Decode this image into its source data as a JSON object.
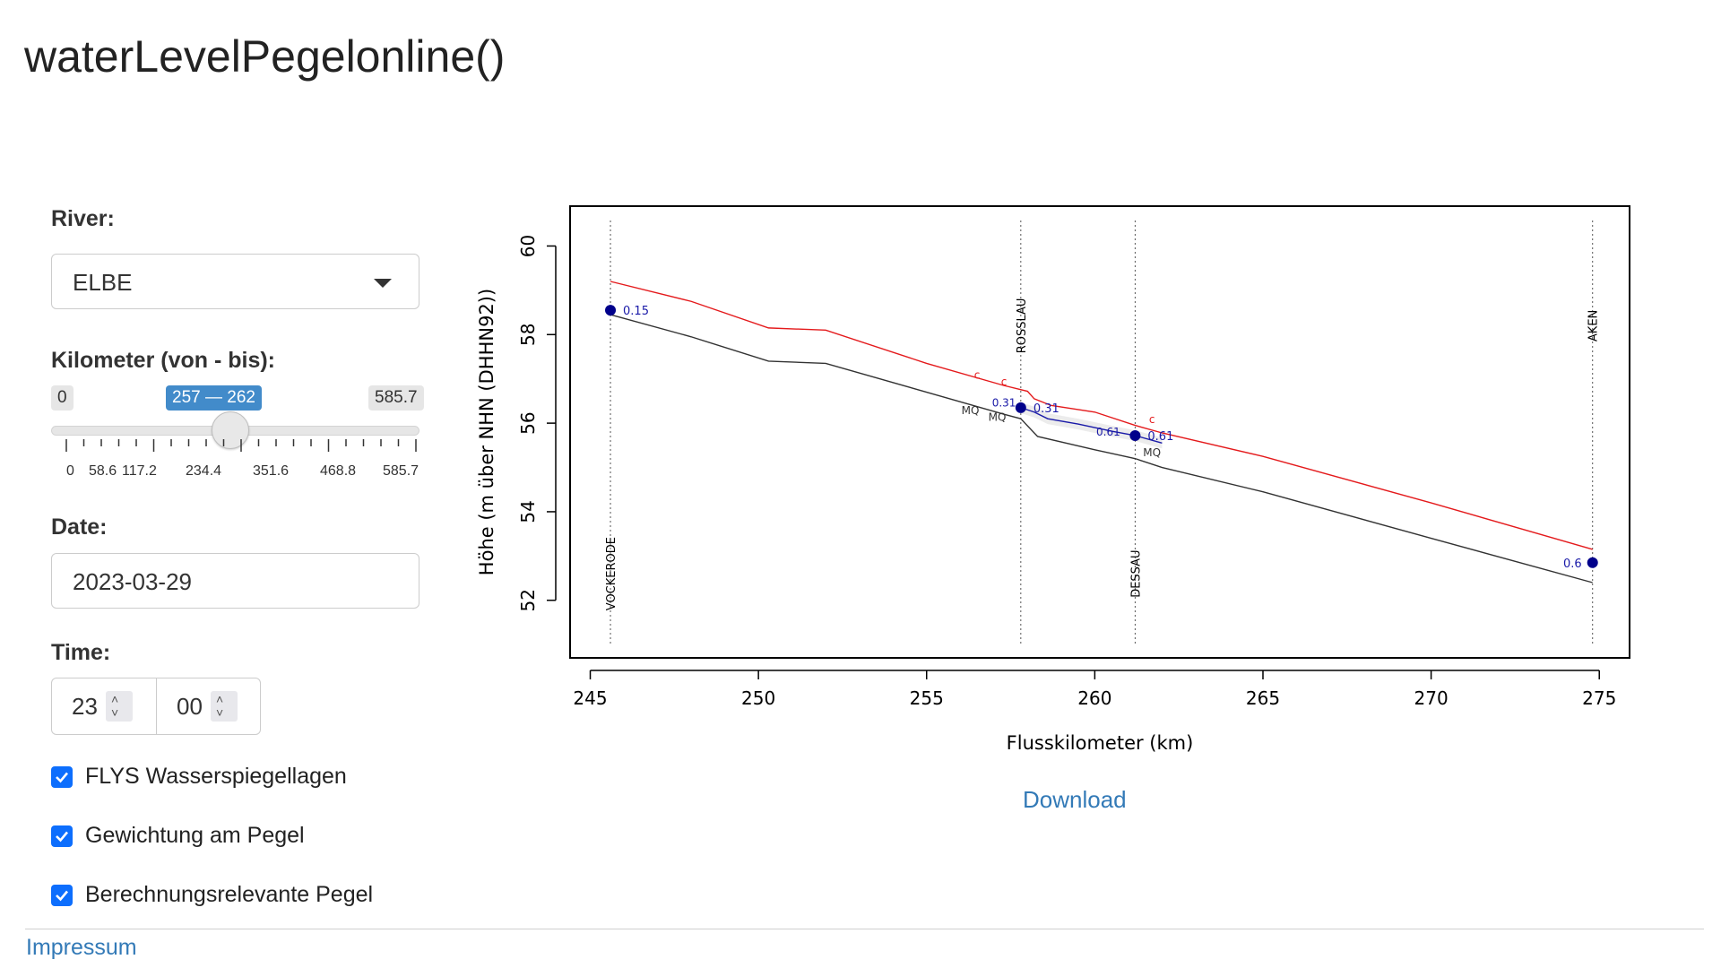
{
  "app": {
    "title": "waterLevelPegelonline()"
  },
  "sidebar": {
    "river": {
      "label": "River:",
      "value": "ELBE"
    },
    "km": {
      "label": "Kilometer (von - bis):",
      "min_label": "0",
      "max_label": "585.7",
      "range_label": "257 — 262",
      "tick_labels": [
        "0",
        "58.6",
        "117.2",
        "234.4",
        "351.6",
        "468.8",
        "585.7"
      ],
      "from": 257,
      "to": 262,
      "max": 585.7
    },
    "date": {
      "label": "Date:",
      "value": "2023-03-29"
    },
    "time": {
      "label": "Time:",
      "hour": "23",
      "minute": "00"
    },
    "checkboxes": [
      {
        "label": "FLYS Wasserspiegellagen",
        "checked": true
      },
      {
        "label": "Gewichtung am Pegel",
        "checked": true
      },
      {
        "label": "Berechnungsrelevante Pegel",
        "checked": true
      }
    ]
  },
  "main": {
    "download_label": "Download"
  },
  "footer": {
    "impressum_label": "Impressum"
  },
  "chart_data": {
    "type": "line",
    "xlabel": "Flusskilometer (km)",
    "ylabel": "Höhe (m über NHN (DHHN92))",
    "xlim": [
      244.4,
      275.9
    ],
    "ylim": [
      50.7,
      60.9
    ],
    "x_ticks": [
      245,
      250,
      255,
      260,
      265,
      270,
      275
    ],
    "y_ticks": [
      52,
      54,
      56,
      58,
      60
    ],
    "grid": false,
    "gauges": [
      {
        "name": "VOCKERODE",
        "km": 245.6,
        "value_label": "0.15",
        "wl": 58.55
      },
      {
        "name": "ROSSLAU",
        "km": 257.8,
        "value_label": "0.31",
        "wl": 56.35
      },
      {
        "name": "DESSAU",
        "km": 261.2,
        "value_label": "0.61",
        "wl": 55.72
      },
      {
        "name": "AKEN",
        "km": 274.8,
        "value_label": "0.6",
        "wl": 52.85
      }
    ],
    "series": [
      {
        "color": "#e41a1c",
        "x": [
          245.6,
          248,
          250.3,
          252,
          255,
          257.3,
          258,
          258.2,
          258.7,
          260,
          261.2,
          262,
          265,
          270,
          274.8
        ],
        "y": [
          59.2,
          58.75,
          58.15,
          58.1,
          57.35,
          56.85,
          56.72,
          56.55,
          56.4,
          56.25,
          55.95,
          55.78,
          55.25,
          54.2,
          53.15
        ]
      },
      {
        "color": "#333333",
        "x": [
          245.6,
          248,
          250.3,
          252,
          255,
          257.3,
          257.8,
          258.3,
          260,
          261.2,
          262,
          265,
          270,
          274.8
        ],
        "y": [
          58.45,
          57.95,
          57.4,
          57.35,
          56.7,
          56.2,
          56.1,
          55.7,
          55.4,
          55.2,
          55.0,
          54.45,
          53.4,
          52.4
        ]
      },
      {
        "color": "#1a1aa8",
        "x": [
          257.8,
          258.2,
          258.6,
          259.5,
          260.5,
          261.2,
          262
        ],
        "y": [
          56.35,
          56.25,
          56.1,
          55.98,
          55.82,
          55.72,
          55.55
        ]
      }
    ],
    "annotations": [
      {
        "text": "c",
        "x": 256.5,
        "y": 57.0,
        "color": "#e41a1c"
      },
      {
        "text": "c",
        "x": 257.3,
        "y": 56.85,
        "color": "#e41a1c"
      },
      {
        "text": "c",
        "x": 261.7,
        "y": 56.0,
        "color": "#e41a1c"
      },
      {
        "text": "MQ",
        "x": 256.3,
        "y": 56.2,
        "color": "#333333"
      },
      {
        "text": "MQ",
        "x": 257.1,
        "y": 56.05,
        "color": "#333333"
      },
      {
        "text": "MQ",
        "x": 261.7,
        "y": 55.25,
        "color": "#333333"
      },
      {
        "text": "0.31",
        "x": 257.3,
        "y": 56.38,
        "color": "#1a1aa8"
      },
      {
        "text": "0.61",
        "x": 260.4,
        "y": 55.72,
        "color": "#1a1aa8"
      }
    ]
  }
}
